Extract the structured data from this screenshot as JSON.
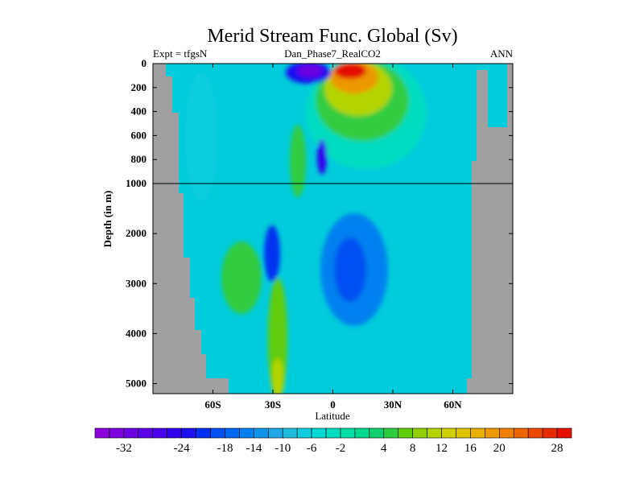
{
  "chart_data": {
    "type": "heatmap",
    "title": "Merid Stream Func. Global (Sv)",
    "left_label": "Expt = tfgsN",
    "center_label": "Dan_Phase7_RealCO2",
    "right_label": "ANN",
    "xlabel": "Latitude",
    "ylabel": "Depth (in m)",
    "x_range": [
      -90,
      90
    ],
    "x_ticks": [
      {
        "value": -60,
        "label": "60S"
      },
      {
        "value": -30,
        "label": "30S"
      },
      {
        "value": 0,
        "label": "0"
      },
      {
        "value": 30,
        "label": "30N"
      },
      {
        "value": 60,
        "label": "60N"
      }
    ],
    "y_upper_range": [
      0,
      1000
    ],
    "y_lower_range": [
      1000,
      5200
    ],
    "y_ticks_upper": [
      0,
      200,
      400,
      600,
      800,
      1000
    ],
    "y_ticks_lower": [
      2000,
      3000,
      4000,
      5000
    ],
    "land_color": "#a0a0a0",
    "colorbar": {
      "levels": [
        -36,
        -34,
        -32,
        -30,
        -28,
        -26,
        -24,
        -22,
        -20,
        -18,
        -16,
        -14,
        -12,
        -10,
        -8,
        -6,
        -4,
        -2,
        0,
        2,
        4,
        6,
        8,
        10,
        12,
        14,
        16,
        18,
        20,
        22,
        24,
        26,
        28,
        30
      ],
      "tick_labels": [
        "-32",
        "-24",
        "-18",
        "-14",
        "-10",
        "-6",
        "-2",
        "4",
        "8",
        "12",
        "16",
        "20",
        "28"
      ],
      "colors": [
        "#8a00d8",
        "#7a00dc",
        "#6a00e0",
        "#5a00e6",
        "#4a00ea",
        "#3000ee",
        "#1a10f0",
        "#0030f0",
        "#0050f2",
        "#0068f0",
        "#0080ee",
        "#1094ea",
        "#20a8e6",
        "#20bce0",
        "#10ccdc",
        "#00d8d4",
        "#00dcc0",
        "#00dca8",
        "#00d890",
        "#10d070",
        "#30cc40",
        "#60cc10",
        "#90d000",
        "#b4d400",
        "#d0d000",
        "#e0c400",
        "#e8b000",
        "#ec9800",
        "#ee8000",
        "#ee6400",
        "#ec4800",
        "#e82c00",
        "#e41000"
      ]
    }
  }
}
